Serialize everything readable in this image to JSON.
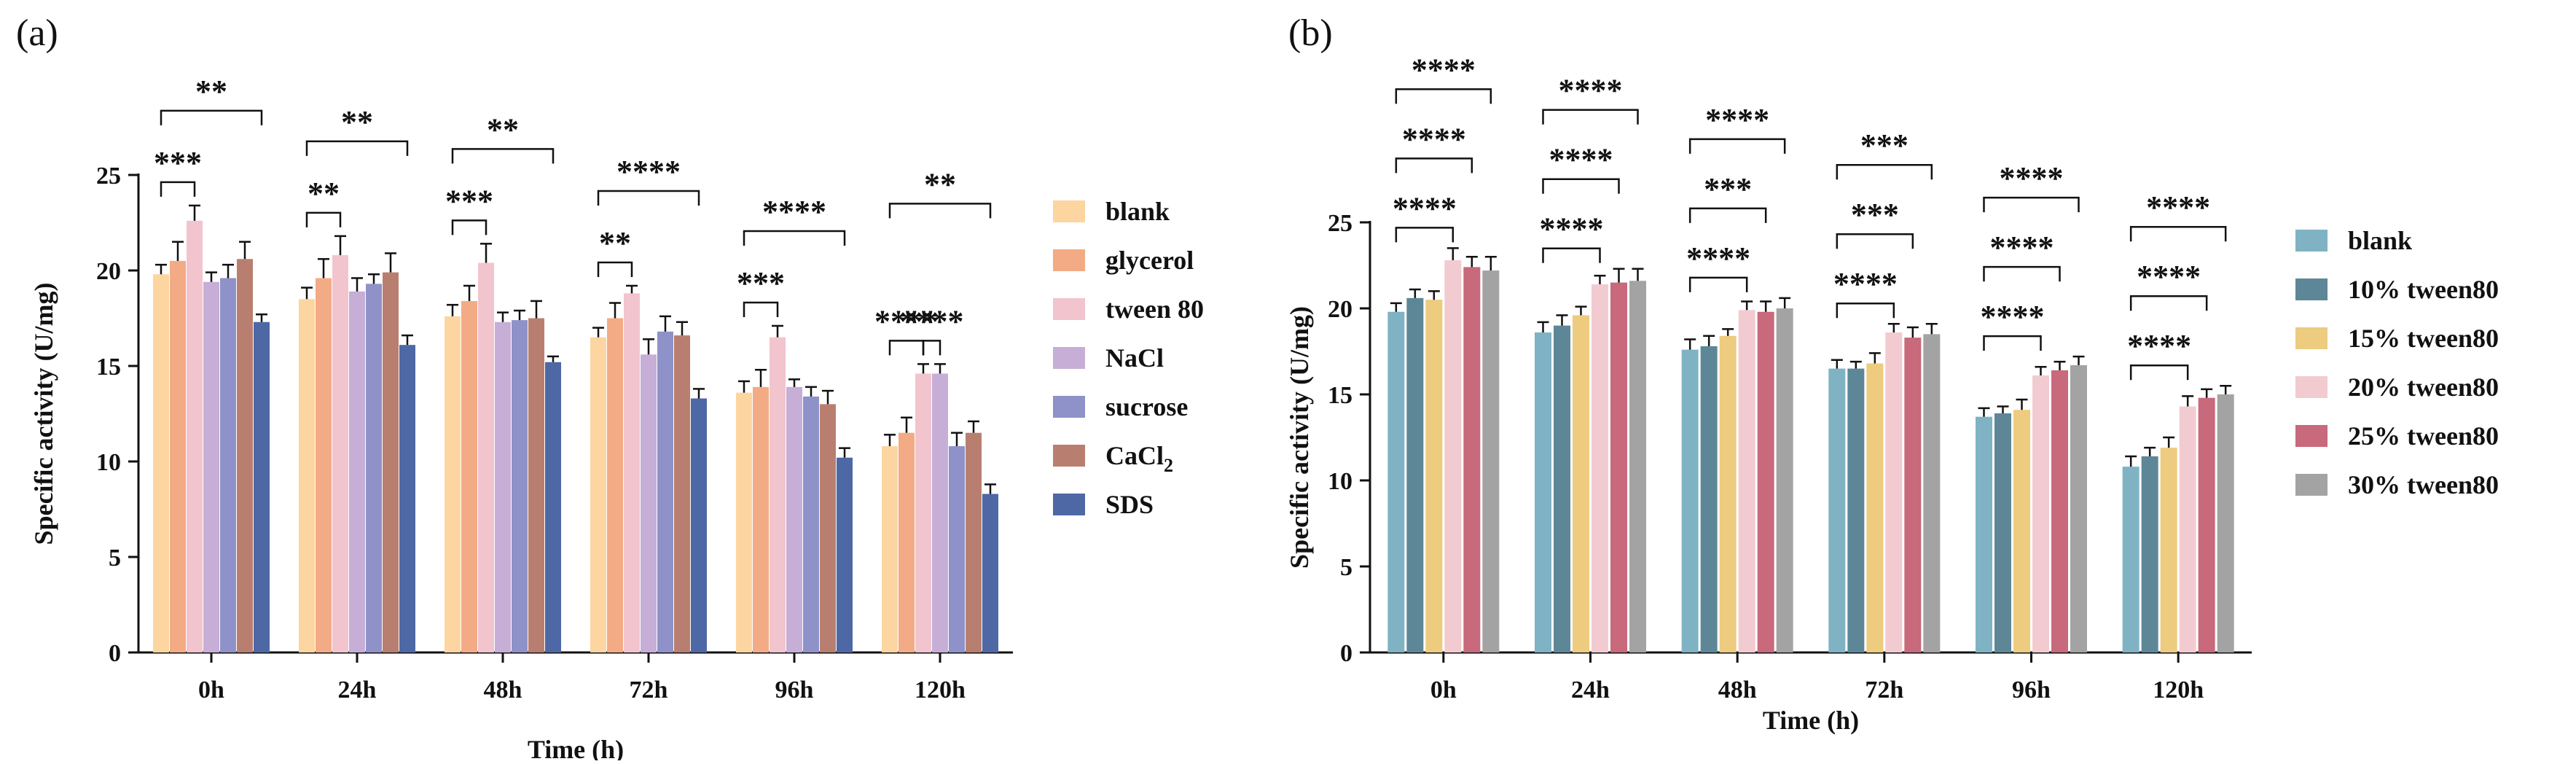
{
  "chart_data": [
    {
      "panel_label": "(a)",
      "type": "bar",
      "xlabel": "Time (h)",
      "ylabel": "Specific activity (U/mg)",
      "ylim": [
        0,
        25
      ],
      "yticks": [
        0,
        5,
        10,
        15,
        20,
        25
      ],
      "categories": [
        "0h",
        "24h",
        "48h",
        "72h",
        "96h",
        "120h"
      ],
      "legend_position": "right",
      "series": [
        {
          "name": "blank",
          "name_sub": "",
          "color": "#FDD5A0",
          "values": [
            19.8,
            18.5,
            17.6,
            16.5,
            13.6,
            10.8
          ],
          "errors": [
            0.5,
            0.6,
            0.6,
            0.5,
            0.6,
            0.6
          ]
        },
        {
          "name": "glycerol",
          "name_sub": "",
          "color": "#F3AB85",
          "values": [
            20.5,
            19.6,
            18.4,
            17.5,
            13.9,
            11.5
          ],
          "errors": [
            1.0,
            1.0,
            0.8,
            0.8,
            0.9,
            0.8
          ]
        },
        {
          "name": "tween 80",
          "name_sub": "",
          "color": "#F2C4CE",
          "values": [
            22.6,
            20.8,
            20.4,
            18.8,
            16.5,
            14.6
          ],
          "errors": [
            0.8,
            1.0,
            1.0,
            0.4,
            0.6,
            0.5
          ]
        },
        {
          "name": "NaCl",
          "name_sub": "",
          "color": "#C6AED6",
          "values": [
            19.4,
            18.9,
            17.3,
            15.6,
            13.9,
            14.6
          ],
          "errors": [
            0.5,
            0.7,
            0.5,
            0.8,
            0.4,
            0.5
          ]
        },
        {
          "name": "sucrose",
          "name_sub": "",
          "color": "#8E92C8",
          "values": [
            19.6,
            19.3,
            17.4,
            16.8,
            13.4,
            10.8
          ],
          "errors": [
            0.7,
            0.5,
            0.5,
            0.8,
            0.5,
            0.7
          ]
        },
        {
          "name": "CaCl",
          "name_sub": "2",
          "color": "#B87F70",
          "values": [
            20.6,
            19.9,
            17.5,
            16.6,
            13.0,
            11.5
          ],
          "errors": [
            0.9,
            1.0,
            0.9,
            0.7,
            0.7,
            0.6
          ]
        },
        {
          "name": "SDS",
          "name_sub": "",
          "color": "#4E68A5",
          "values": [
            17.3,
            16.1,
            15.2,
            13.3,
            10.2,
            8.3
          ],
          "errors": [
            0.4,
            0.5,
            0.3,
            0.5,
            0.5,
            0.5
          ]
        }
      ],
      "significance": [
        {
          "group": 0,
          "from": 0,
          "to": 2,
          "label": "***"
        },
        {
          "group": 0,
          "from": 0,
          "to": 6,
          "label": "**"
        },
        {
          "group": 1,
          "from": 0,
          "to": 2,
          "label": "**"
        },
        {
          "group": 1,
          "from": 0,
          "to": 6,
          "label": "**"
        },
        {
          "group": 2,
          "from": 0,
          "to": 2,
          "label": "***"
        },
        {
          "group": 2,
          "from": 0,
          "to": 6,
          "label": "**"
        },
        {
          "group": 3,
          "from": 0,
          "to": 2,
          "label": "**"
        },
        {
          "group": 3,
          "from": 0,
          "to": 6,
          "label": "****"
        },
        {
          "group": 4,
          "from": 0,
          "to": 2,
          "label": "***"
        },
        {
          "group": 4,
          "from": 0,
          "to": 6,
          "label": "****"
        },
        {
          "group": 5,
          "from": 0,
          "to": 2,
          "label": "****"
        },
        {
          "group": 5,
          "from": 2,
          "to": 3,
          "label": "****"
        },
        {
          "group": 5,
          "from": 0,
          "to": 6,
          "label": "**"
        }
      ]
    },
    {
      "panel_label": "(b)",
      "type": "bar",
      "xlabel": "Time (h)",
      "ylabel": "Specific activity (U/mg)",
      "ylim": [
        0,
        25
      ],
      "yticks": [
        0,
        5,
        10,
        15,
        20,
        25
      ],
      "categories": [
        "0h",
        "24h",
        "48h",
        "72h",
        "96h",
        "120h"
      ],
      "legend_position": "right",
      "series": [
        {
          "name": "blank",
          "name_sub": "",
          "color": "#7FB3C3",
          "values": [
            19.8,
            18.6,
            17.6,
            16.5,
            13.7,
            10.8
          ],
          "errors": [
            0.5,
            0.6,
            0.6,
            0.5,
            0.5,
            0.6
          ]
        },
        {
          "name": "10% tween80",
          "name_sub": "",
          "color": "#5D8797",
          "values": [
            20.6,
            19.0,
            17.8,
            16.5,
            13.9,
            11.4
          ],
          "errors": [
            0.5,
            0.6,
            0.6,
            0.4,
            0.4,
            0.5
          ]
        },
        {
          "name": "15% tween80",
          "name_sub": "",
          "color": "#EDCB7F",
          "values": [
            20.5,
            19.6,
            18.4,
            16.8,
            14.1,
            11.9
          ],
          "errors": [
            0.5,
            0.5,
            0.4,
            0.6,
            0.6,
            0.6
          ]
        },
        {
          "name": "20% tween80",
          "name_sub": "",
          "color": "#F2CBD1",
          "values": [
            22.8,
            21.4,
            19.9,
            18.6,
            16.1,
            14.3
          ],
          "errors": [
            0.7,
            0.5,
            0.5,
            0.5,
            0.5,
            0.6
          ]
        },
        {
          "name": "25% tween80",
          "name_sub": "",
          "color": "#C8697C",
          "values": [
            22.4,
            21.5,
            19.8,
            18.3,
            16.4,
            14.8
          ],
          "errors": [
            0.6,
            0.8,
            0.6,
            0.6,
            0.5,
            0.5
          ]
        },
        {
          "name": "30% tween80",
          "name_sub": "",
          "color": "#A3A3A3",
          "values": [
            22.2,
            21.6,
            20.0,
            18.5,
            16.7,
            15.0
          ],
          "errors": [
            0.8,
            0.7,
            0.6,
            0.6,
            0.5,
            0.5
          ]
        }
      ],
      "significance": [
        {
          "group": 0,
          "from": 0,
          "to": 3,
          "label": "****"
        },
        {
          "group": 0,
          "from": 0,
          "to": 4,
          "label": "****"
        },
        {
          "group": 0,
          "from": 0,
          "to": 5,
          "label": "****"
        },
        {
          "group": 1,
          "from": 0,
          "to": 3,
          "label": "****"
        },
        {
          "group": 1,
          "from": 0,
          "to": 4,
          "label": "****"
        },
        {
          "group": 1,
          "from": 0,
          "to": 5,
          "label": "****"
        },
        {
          "group": 2,
          "from": 0,
          "to": 3,
          "label": "****"
        },
        {
          "group": 2,
          "from": 0,
          "to": 4,
          "label": "***"
        },
        {
          "group": 2,
          "from": 0,
          "to": 5,
          "label": "****"
        },
        {
          "group": 3,
          "from": 0,
          "to": 3,
          "label": "****"
        },
        {
          "group": 3,
          "from": 0,
          "to": 4,
          "label": "***"
        },
        {
          "group": 3,
          "from": 0,
          "to": 5,
          "label": "***"
        },
        {
          "group": 4,
          "from": 0,
          "to": 3,
          "label": "****"
        },
        {
          "group": 4,
          "from": 0,
          "to": 4,
          "label": "****"
        },
        {
          "group": 4,
          "from": 0,
          "to": 5,
          "label": "****"
        },
        {
          "group": 5,
          "from": 0,
          "to": 3,
          "label": "****"
        },
        {
          "group": 5,
          "from": 0,
          "to": 4,
          "label": "****"
        },
        {
          "group": 5,
          "from": 0,
          "to": 5,
          "label": "****"
        }
      ]
    }
  ]
}
